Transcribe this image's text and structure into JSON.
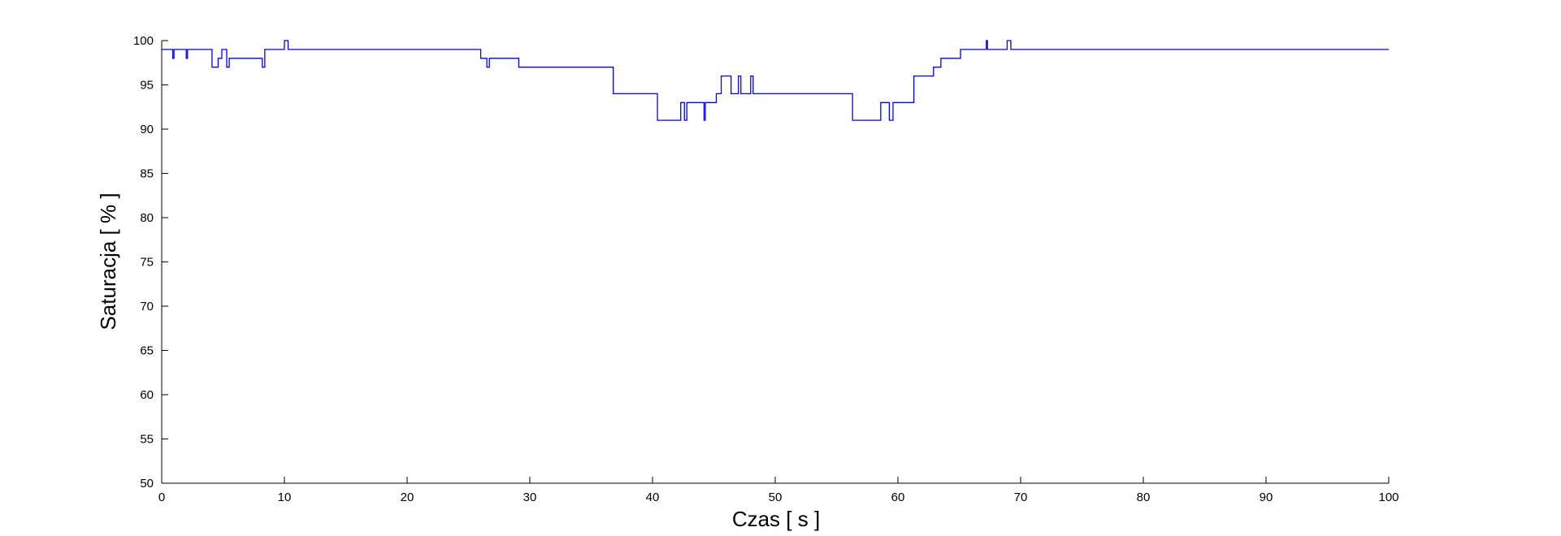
{
  "chart_data": {
    "type": "line",
    "xlabel": "Czas [ s ]",
    "ylabel": "Saturacja [ % ]",
    "x": [
      0,
      0.9,
      0.9,
      1,
      1,
      2,
      2,
      2.1,
      2.1,
      4.1,
      4.1,
      4.6,
      4.6,
      4.9,
      4.9,
      5.3,
      5.3,
      5.5,
      5.5,
      8.2,
      8.2,
      8.4,
      8.4,
      10,
      10,
      10.3,
      10.3,
      26,
      26,
      26.5,
      26.5,
      26.7,
      26.7,
      29.1,
      29.1,
      36.8,
      36.8,
      40.4,
      40.4,
      42.3,
      42.3,
      42.6,
      42.6,
      42.8,
      42.8,
      44.2,
      44.2,
      44.3,
      44.3,
      45.2,
      45.2,
      45.6,
      45.6,
      46.4,
      46.4,
      47,
      47,
      47.2,
      47.2,
      48,
      48,
      48.2,
      48.2,
      56.3,
      56.3,
      58.6,
      58.6,
      59.3,
      59.3,
      59.6,
      59.6,
      61.3,
      61.3,
      62.9,
      62.9,
      63.5,
      63.5,
      65.1,
      65.1,
      67.2,
      67.2,
      67.3,
      67.3,
      68.9,
      68.9,
      69.2,
      69.2,
      100
    ],
    "values": [
      99,
      99,
      98,
      98,
      99,
      99,
      98,
      98,
      99,
      99,
      97,
      97,
      98,
      98,
      99,
      99,
      97,
      97,
      98,
      98,
      97,
      97,
      99,
      99,
      100,
      100,
      99,
      99,
      98,
      98,
      97,
      97,
      98,
      98,
      97,
      97,
      94,
      94,
      91,
      91,
      93,
      93,
      91,
      91,
      93,
      93,
      91,
      91,
      93,
      93,
      94,
      94,
      96,
      96,
      94,
      94,
      96,
      96,
      94,
      94,
      96,
      96,
      94,
      94,
      91,
      91,
      93,
      93,
      91,
      91,
      93,
      93,
      96,
      96,
      97,
      97,
      98,
      98,
      99,
      99,
      100,
      100,
      99,
      99,
      100,
      100,
      99,
      99
    ],
    "color": "#0000ff",
    "xlim": [
      0,
      100
    ],
    "xticks": [
      0,
      10,
      20,
      30,
      40,
      50,
      60,
      70,
      80,
      90,
      100
    ],
    "ylim": [
      50,
      100
    ],
    "yticks": [
      50,
      55,
      60,
      65,
      70,
      75,
      80,
      85,
      90,
      95,
      100
    ],
    "grid": false
  }
}
